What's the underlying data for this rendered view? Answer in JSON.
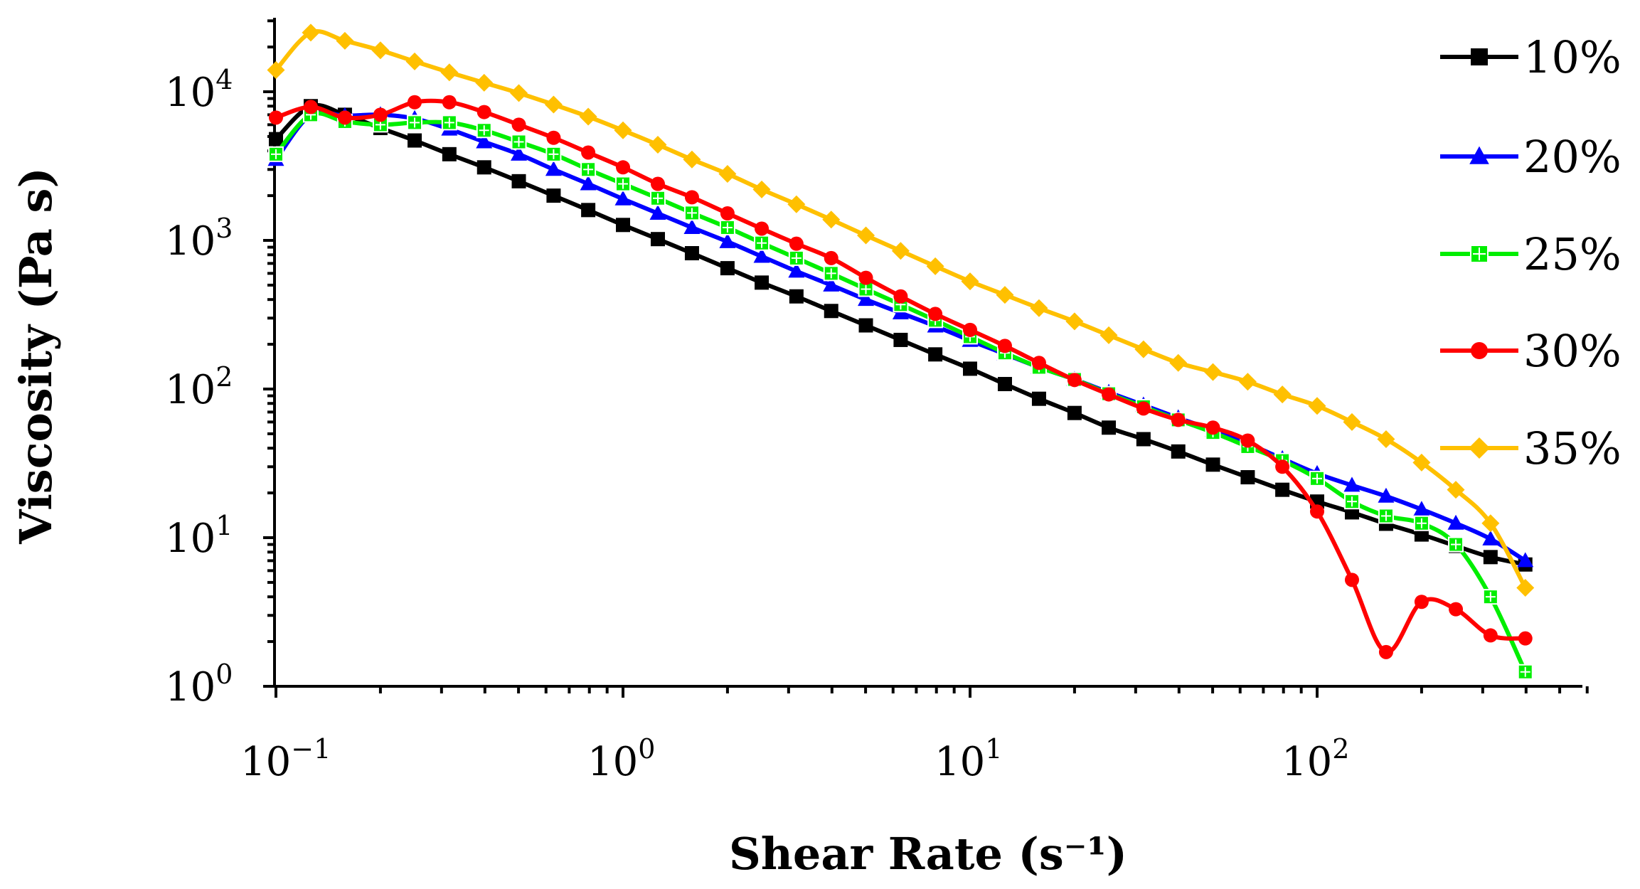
{
  "chart_data": {
    "type": "line",
    "xscale": "log",
    "yscale": "log",
    "xlabel": "Shear Rate (s⁻¹)",
    "ylabel": "Viscosity (Pa s)",
    "xlim": [
      0.1,
      600
    ],
    "ylim": [
      1,
      30000
    ],
    "x_ticks": [
      {
        "value": 0.1,
        "base": "10",
        "exp": "−1"
      },
      {
        "value": 1,
        "base": "10",
        "exp": "0"
      },
      {
        "value": 10,
        "base": "10",
        "exp": "1"
      },
      {
        "value": 100,
        "base": "10",
        "exp": "2"
      }
    ],
    "y_ticks": [
      {
        "value": 1,
        "base": "10",
        "exp": "0"
      },
      {
        "value": 10,
        "base": "10",
        "exp": "1"
      },
      {
        "value": 100,
        "base": "10",
        "exp": "2"
      },
      {
        "value": 1000,
        "base": "10",
        "exp": "3"
      },
      {
        "value": 10000,
        "base": "10",
        "exp": "4"
      }
    ],
    "x": [
      0.1,
      0.126,
      0.158,
      0.2,
      0.251,
      0.316,
      0.398,
      0.501,
      0.631,
      0.794,
      1.0,
      1.26,
      1.58,
      2.0,
      2.51,
      3.16,
      3.98,
      5.01,
      6.31,
      7.94,
      10.0,
      12.6,
      15.8,
      20.0,
      25.1,
      31.6,
      39.8,
      50.1,
      63.1,
      79.4,
      100,
      126,
      158,
      200,
      251,
      316,
      398
    ],
    "series": [
      {
        "name": "10%",
        "color": "#000000",
        "marker": "square",
        "values": [
          4800,
          8000,
          7000,
          5700,
          4700,
          3800,
          3100,
          2500,
          2000,
          1600,
          1270,
          1020,
          820,
          650,
          520,
          420,
          335,
          268,
          214,
          171,
          137,
          108,
          86,
          69,
          55,
          46,
          38,
          31,
          25.5,
          21,
          17.5,
          14.8,
          12.4,
          10.5,
          8.8,
          7.4,
          6.6
        ]
      },
      {
        "name": "20%",
        "color": "#0000FF",
        "marker": "triangle",
        "values": [
          3500,
          7000,
          6900,
          7000,
          6600,
          5600,
          4600,
          3800,
          3000,
          2400,
          1900,
          1520,
          1220,
          980,
          780,
          620,
          500,
          400,
          325,
          265,
          212,
          172,
          140,
          116,
          95,
          78,
          64,
          53,
          43,
          34,
          27,
          22.5,
          19,
          15.5,
          12.5,
          9.8,
          7.0
        ]
      },
      {
        "name": "25%",
        "color": "#00EE00",
        "marker": "square-open",
        "values": [
          3800,
          7000,
          6300,
          6000,
          6200,
          6200,
          5500,
          4600,
          3800,
          3000,
          2400,
          1920,
          1530,
          1220,
          960,
          760,
          600,
          470,
          370,
          290,
          225,
          175,
          140,
          116,
          93,
          76,
          62,
          51,
          41,
          33,
          25,
          17.5,
          14,
          12.5,
          9,
          4,
          1.25
        ]
      },
      {
        "name": "30%",
        "color": "#FF0000",
        "marker": "circle",
        "values": [
          6700,
          7900,
          6700,
          7000,
          8500,
          8500,
          7300,
          6000,
          4900,
          3900,
          3100,
          2400,
          1950,
          1520,
          1200,
          950,
          760,
          560,
          420,
          320,
          250,
          195,
          150,
          115,
          92,
          74,
          62,
          55,
          45,
          30,
          15,
          5.2,
          1.7,
          3.7,
          3.3,
          2.2,
          2.1
        ]
      },
      {
        "name": "35%",
        "color": "#FFC000",
        "marker": "diamond",
        "values": [
          14000,
          25000,
          22000,
          19000,
          16000,
          13500,
          11500,
          9800,
          8200,
          6800,
          5500,
          4400,
          3500,
          2800,
          2200,
          1750,
          1380,
          1080,
          850,
          670,
          530,
          430,
          350,
          285,
          230,
          185,
          150,
          130,
          112,
          92,
          77,
          60,
          46,
          32,
          21,
          12.5,
          4.6
        ]
      }
    ]
  }
}
